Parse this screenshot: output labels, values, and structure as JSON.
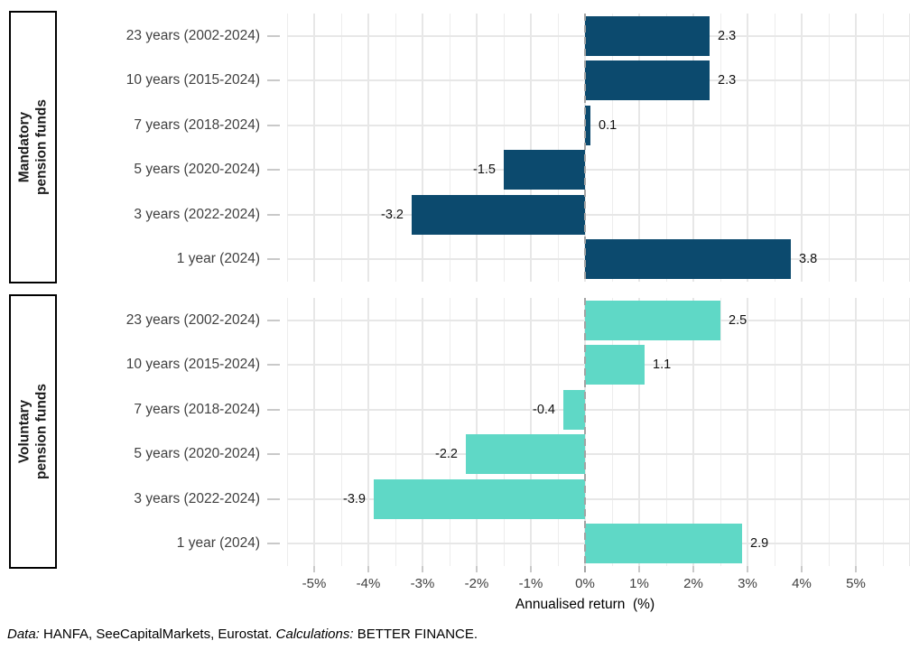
{
  "chart_data": {
    "type": "bar",
    "orientation": "horizontal",
    "categories": [
      "23 years (2002-2024)",
      "10 years (2015-2024)",
      "7 years (2018-2024)",
      "5 years (2020-2024)",
      "3 years (2022-2024)",
      "1 year (2024)"
    ],
    "series": [
      {
        "name": "Mandatory pension funds",
        "strip_lines": [
          "Mandatory",
          "pension funds"
        ],
        "values": [
          2.3,
          2.3,
          0.1,
          -1.5,
          -3.2,
          3.8
        ],
        "color": "#0c4a6e"
      },
      {
        "name": "Voluntary pension funds",
        "strip_lines": [
          "Voluntary",
          "pension funds"
        ],
        "values": [
          2.5,
          1.1,
          -0.4,
          -2.2,
          -3.9,
          2.9
        ],
        "color": "#5fd8c6"
      }
    ],
    "xlabel": "Annualised return  (%)",
    "x_tick_labels": [
      "-5%",
      "-4%",
      "-3%",
      "-2%",
      "-1%",
      "0%",
      "1%",
      "2%",
      "3%",
      "4%",
      "5%"
    ],
    "x_tick_values": [
      -5,
      -4,
      -3,
      -2,
      -1,
      0,
      1,
      2,
      3,
      4,
      5
    ],
    "xlim": [
      -5.5,
      6
    ],
    "grid": true,
    "zero_line": "dashed",
    "legend_position": "none",
    "value_label_decimals": 1
  },
  "colors": {
    "mandatory_bar": "#0c4a6e",
    "voluntary_bar": "#5fd8c6",
    "grid_major": "#e7e7e7",
    "grid_minor": "#ededed",
    "zero_line": "#a3a3a3",
    "tick_mark": "#c9c9c9",
    "axis_text": "#404040",
    "value_text": "#111111",
    "strip_border": "#000000"
  },
  "footer": {
    "data_label": "Data:",
    "data_text": " HANFA, SeeCapitalMarkets, Eurostat. ",
    "calc_label": "Calculations:",
    "calc_text": " BETTER FINANCE."
  }
}
